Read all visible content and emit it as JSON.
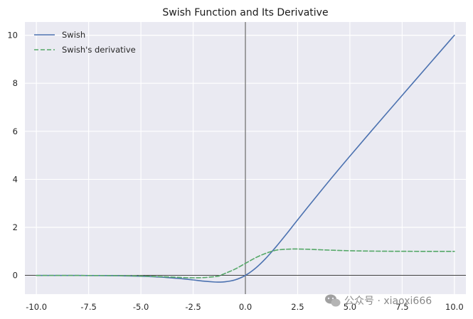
{
  "chart_data": {
    "type": "line",
    "title": "Swish Function and Its Derivative",
    "xlabel": "",
    "ylabel": "",
    "xlim": [
      -10.55,
      10.55
    ],
    "ylim": [
      -0.78,
      10.55
    ],
    "xticks": [
      -10.0,
      -7.5,
      -5.0,
      -2.5,
      0.0,
      2.5,
      5.0,
      7.5,
      10.0
    ],
    "xtick_labels": [
      "-10.0",
      "-7.5",
      "-5.0",
      "-2.5",
      "0.0",
      "2.5",
      "5.0",
      "7.5",
      "10.0"
    ],
    "yticks": [
      0,
      2,
      4,
      6,
      8,
      10
    ],
    "ytick_labels": [
      "0",
      "2",
      "4",
      "6",
      "8",
      "10"
    ],
    "grid": true,
    "legend_position": "top-left",
    "reference_lines": {
      "x": 0,
      "y": 0
    },
    "x": [
      -10,
      -9,
      -8,
      -7,
      -6,
      -5,
      -4,
      -3,
      -2.5,
      -2,
      -1.5,
      -1.28,
      -1,
      -0.5,
      0,
      0.5,
      1,
      1.5,
      2,
      2.4,
      3,
      4,
      5,
      6,
      7,
      8,
      9,
      10
    ],
    "series": [
      {
        "name": "Swish",
        "color": "#4c72b0",
        "style": "solid",
        "values": [
          -0.0005,
          -0.0011,
          -0.0027,
          -0.0064,
          -0.0148,
          -0.0335,
          -0.0719,
          -0.1423,
          -0.1887,
          -0.2384,
          -0.2736,
          -0.2785,
          -0.2689,
          -0.1888,
          0.0,
          0.3112,
          0.7311,
          1.2264,
          1.7616,
          2.2042,
          2.8577,
          3.9281,
          4.9665,
          5.9852,
          6.9936,
          7.9973,
          8.9989,
          9.9995
        ]
      },
      {
        "name": "Swish's derivative",
        "color": "#55a868",
        "style": "dashed",
        "values": [
          -0.0004,
          -0.001,
          -0.0024,
          -0.0055,
          -0.0123,
          -0.0266,
          -0.0539,
          -0.0881,
          -0.0996,
          -0.0908,
          -0.0536,
          -0.0285,
          0.0723,
          0.26,
          0.5,
          0.74,
          0.9277,
          1.0536,
          1.0908,
          1.0995,
          1.0881,
          1.0539,
          1.0266,
          1.0123,
          1.0055,
          1.0024,
          1.001,
          1.0004
        ]
      }
    ]
  },
  "watermark": {
    "icon": "wechat-icon",
    "text": "公众号 · xiaoxi666"
  },
  "colors": {
    "plot_background": "#eaeaf2",
    "grid": "#ffffff",
    "axis_lines": "#000000"
  }
}
